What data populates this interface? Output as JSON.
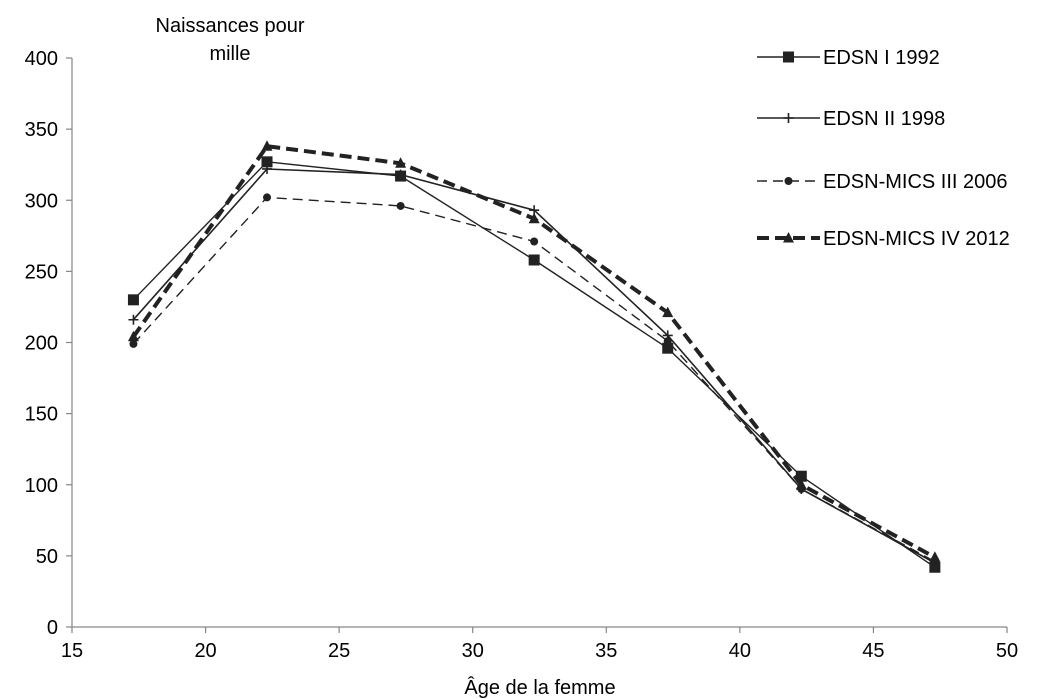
{
  "chart_data": {
    "type": "line",
    "ylabel_lines": [
      "Naissances pour",
      "mille"
    ],
    "xlabel": "Âge de la femme",
    "xlim": [
      15,
      50
    ],
    "ylim": [
      0,
      400
    ],
    "x_ticks": [
      15,
      20,
      25,
      30,
      35,
      40,
      45,
      50
    ],
    "y_ticks": [
      0,
      50,
      100,
      150,
      200,
      250,
      300,
      350,
      400
    ],
    "grid": false,
    "legend_position": "right",
    "x": [
      17.3,
      22.3,
      27.3,
      32.3,
      37.3,
      42.3,
      47.3
    ],
    "series": [
      {
        "name": "EDSN I 1992",
        "marker": "square",
        "line": "solid-thin",
        "values": [
          230,
          327,
          317,
          258,
          196,
          106,
          42
        ]
      },
      {
        "name": "EDSN II 1998",
        "marker": "plus",
        "line": "solid",
        "values": [
          216,
          322,
          318,
          293,
          205,
          97,
          45
        ]
      },
      {
        "name": "EDSN-MICS III 2006",
        "marker": "circle",
        "line": "dashed",
        "values": [
          199,
          302,
          296,
          271,
          201,
          97,
          46
        ]
      },
      {
        "name": "EDSN-MICS IV 2012",
        "marker": "triangle",
        "line": "dashed-bold",
        "values": [
          204,
          338,
          326,
          287,
          221,
          100,
          49
        ]
      }
    ]
  }
}
